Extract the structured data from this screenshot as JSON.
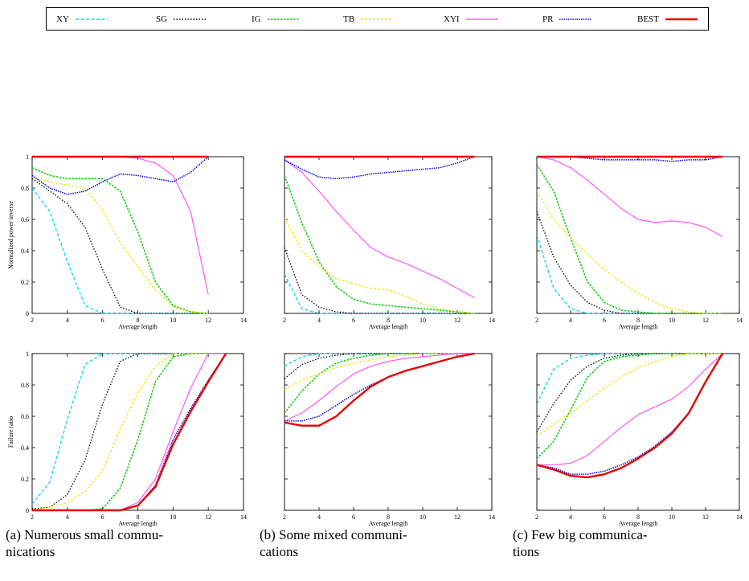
{
  "legend": [
    {
      "label": "XY",
      "color": "#00d8e8",
      "dash": "4,2.5",
      "width": 1.3
    },
    {
      "label": "SG",
      "color": "#000000",
      "dash": "1.5,2",
      "width": 1.3
    },
    {
      "label": "IG",
      "color": "#00cc00",
      "dash": "2.5,1.5",
      "width": 1.5
    },
    {
      "label": "TB",
      "color": "#f2e600",
      "dash": "3,2",
      "width": 1.2
    },
    {
      "label": "XYI",
      "color": "#ff55ff",
      "dash": "",
      "width": 1.2
    },
    {
      "label": "PR",
      "color": "#0000cc",
      "dash": "1.5,1.2",
      "width": 1.5
    },
    {
      "label": "BEST",
      "color": "#e60000",
      "dash": "",
      "width": 2.4
    }
  ],
  "captions": [
    {
      "line1": "(a) Numerous small commu-",
      "line2": "nications"
    },
    {
      "line1": "(b) Some mixed communi-",
      "line2": "cations"
    },
    {
      "line1": "(c) Few big communica-",
      "line2": "tions"
    }
  ],
  "chart_data": [
    {
      "id": "a-top",
      "type": "line",
      "xlabel": "Average length",
      "ylabel": "Normalized power inverse",
      "xlim": [
        2,
        14
      ],
      "ylim": [
        0,
        1
      ],
      "xticks": [
        "2",
        "4",
        "6",
        "8",
        "10",
        "12",
        "14"
      ],
      "yticks": [
        "0",
        "0.2",
        "0.4",
        "0.6",
        "0.8",
        "1"
      ],
      "x": [
        2,
        3,
        4,
        5,
        6,
        7,
        8,
        9,
        10,
        11,
        12
      ],
      "series": [
        {
          "name": "XY",
          "values": [
            0.8,
            0.65,
            0.33,
            0.05,
            0,
            0,
            0,
            0,
            0,
            0,
            0
          ]
        },
        {
          "name": "SG",
          "values": [
            0.86,
            0.78,
            0.7,
            0.55,
            0.28,
            0.04,
            0,
            0,
            0,
            0,
            0
          ]
        },
        {
          "name": "IG",
          "values": [
            0.93,
            0.88,
            0.86,
            0.86,
            0.86,
            0.78,
            0.52,
            0.2,
            0.05,
            0.01,
            0
          ]
        },
        {
          "name": "TB",
          "values": [
            0.87,
            0.84,
            0.82,
            0.8,
            0.66,
            0.45,
            0.3,
            0.15,
            0.04,
            0.01,
            0
          ]
        },
        {
          "name": "XYI",
          "values": [
            1,
            1,
            1,
            1,
            1,
            1,
            0.99,
            0.96,
            0.88,
            0.65,
            0.12
          ]
        },
        {
          "name": "PR",
          "values": [
            0.88,
            0.8,
            0.76,
            0.78,
            0.84,
            0.89,
            0.88,
            0.86,
            0.84,
            0.9,
            1
          ]
        },
        {
          "name": "BEST",
          "values": [
            1,
            1,
            1,
            1,
            1,
            1,
            1,
            1,
            1,
            1,
            1
          ]
        }
      ]
    },
    {
      "id": "b-top",
      "type": "line",
      "xlabel": "Average length",
      "ylabel": "",
      "xlim": [
        2,
        14
      ],
      "ylim": [
        0,
        1
      ],
      "xticks": [
        "2",
        "4",
        "6",
        "8",
        "10",
        "12",
        "14"
      ],
      "yticks": [],
      "x": [
        2,
        3,
        4,
        5,
        6,
        7,
        8,
        9,
        10,
        11,
        12,
        13
      ],
      "series": [
        {
          "name": "XY",
          "values": [
            0.25,
            0.03,
            0,
            0,
            0,
            0,
            0,
            0,
            0,
            0,
            0,
            0
          ]
        },
        {
          "name": "SG",
          "values": [
            0.42,
            0.12,
            0.04,
            0.01,
            0,
            0,
            0,
            0,
            0,
            0,
            0,
            0
          ]
        },
        {
          "name": "IG",
          "values": [
            0.88,
            0.58,
            0.33,
            0.17,
            0.09,
            0.06,
            0.05,
            0.04,
            0.03,
            0.02,
            0.01,
            0
          ]
        },
        {
          "name": "TB",
          "values": [
            0.61,
            0.4,
            0.3,
            0.22,
            0.19,
            0.16,
            0.15,
            0.11,
            0.06,
            0.03,
            0.01,
            0
          ]
        },
        {
          "name": "XYI",
          "values": [
            0.98,
            0.9,
            0.78,
            0.65,
            0.53,
            0.42,
            0.36,
            0.32,
            0.27,
            0.22,
            0.16,
            0.1
          ]
        },
        {
          "name": "PR",
          "values": [
            0.98,
            0.92,
            0.87,
            0.86,
            0.87,
            0.89,
            0.9,
            0.91,
            0.92,
            0.93,
            0.96,
            1
          ]
        },
        {
          "name": "BEST",
          "values": [
            1,
            1,
            1,
            1,
            1,
            1,
            1,
            1,
            1,
            1,
            1,
            1
          ]
        }
      ]
    },
    {
      "id": "c-top",
      "type": "line",
      "xlabel": "Average length",
      "ylabel": "",
      "xlim": [
        2,
        14
      ],
      "ylim": [
        0,
        1
      ],
      "xticks": [
        "2",
        "4",
        "6",
        "8",
        "10",
        "12",
        "14"
      ],
      "yticks": [],
      "x": [
        2,
        3,
        4,
        5,
        6,
        7,
        8,
        9,
        10,
        11,
        12,
        13
      ],
      "series": [
        {
          "name": "XY",
          "values": [
            0.5,
            0.16,
            0.03,
            0,
            0,
            0,
            0,
            0,
            0,
            0,
            0,
            0
          ]
        },
        {
          "name": "SG",
          "values": [
            0.65,
            0.36,
            0.18,
            0.07,
            0.02,
            0,
            0,
            0,
            0,
            0,
            0,
            0
          ]
        },
        {
          "name": "IG",
          "values": [
            0.95,
            0.78,
            0.48,
            0.2,
            0.07,
            0.02,
            0.01,
            0,
            0,
            0,
            0,
            0
          ]
        },
        {
          "name": "TB",
          "values": [
            0.78,
            0.6,
            0.48,
            0.38,
            0.28,
            0.2,
            0.13,
            0.07,
            0.03,
            0.01,
            0,
            0
          ]
        },
        {
          "name": "XYI",
          "values": [
            1,
            0.98,
            0.93,
            0.85,
            0.76,
            0.67,
            0.6,
            0.58,
            0.59,
            0.58,
            0.55,
            0.49
          ]
        },
        {
          "name": "PR",
          "values": [
            1,
            1,
            1,
            0.99,
            0.98,
            0.98,
            0.98,
            0.98,
            0.97,
            0.98,
            0.98,
            1
          ]
        },
        {
          "name": "BEST",
          "values": [
            1,
            1,
            1,
            1,
            1,
            1,
            1,
            1,
            1,
            1,
            1,
            1
          ]
        }
      ]
    },
    {
      "id": "a-bottom",
      "type": "line",
      "xlabel": "Average length",
      "ylabel": "Failure ratio",
      "xlim": [
        2,
        14
      ],
      "ylim": [
        0,
        1
      ],
      "xticks": [
        "2",
        "4",
        "6",
        "8",
        "10",
        "12",
        "14"
      ],
      "yticks": [
        "0",
        "0.2",
        "0.4",
        "0.6",
        "0.8",
        "1"
      ],
      "x": [
        2,
        3,
        4,
        5,
        6,
        7,
        8,
        9,
        10,
        11,
        12,
        13
      ],
      "series": [
        {
          "name": "XY",
          "values": [
            0.04,
            0.18,
            0.58,
            0.93,
            1,
            1,
            1,
            1,
            1,
            1,
            1,
            1
          ]
        },
        {
          "name": "SG",
          "values": [
            0.01,
            0.02,
            0.1,
            0.32,
            0.68,
            0.95,
            1,
            1,
            1,
            1,
            1,
            1
          ]
        },
        {
          "name": "IG",
          "values": [
            0,
            0,
            0,
            0,
            0.01,
            0.14,
            0.45,
            0.82,
            0.98,
            1,
            1,
            1
          ]
        },
        {
          "name": "TB",
          "values": [
            0,
            0.02,
            0.05,
            0.12,
            0.25,
            0.52,
            0.75,
            0.92,
            1,
            1,
            1,
            1
          ]
        },
        {
          "name": "XYI",
          "values": [
            0,
            0,
            0,
            0,
            0,
            0,
            0.05,
            0.2,
            0.5,
            0.78,
            1,
            1
          ]
        },
        {
          "name": "PR",
          "values": [
            0,
            0,
            0,
            0,
            0,
            0,
            0.03,
            0.16,
            0.45,
            0.65,
            0.83,
            1
          ]
        },
        {
          "name": "BEST",
          "values": [
            0,
            0,
            0,
            0,
            0,
            0,
            0.03,
            0.15,
            0.42,
            0.63,
            0.82,
            1
          ]
        }
      ]
    },
    {
      "id": "b-bottom",
      "type": "line",
      "xlabel": "Average length",
      "ylabel": "",
      "xlim": [
        2,
        14
      ],
      "ylim": [
        0,
        1
      ],
      "xticks": [
        "2",
        "4",
        "6",
        "8",
        "10",
        "12",
        "14"
      ],
      "yticks": [],
      "x": [
        2,
        3,
        4,
        5,
        6,
        7,
        8,
        9,
        10,
        11,
        12,
        13
      ],
      "series": [
        {
          "name": "XY",
          "values": [
            0.92,
            0.98,
            1,
            1,
            1,
            1,
            1,
            1,
            1,
            1,
            1,
            1
          ]
        },
        {
          "name": "SG",
          "values": [
            0.84,
            0.93,
            0.97,
            0.99,
            1,
            1,
            1,
            1,
            1,
            1,
            1,
            1
          ]
        },
        {
          "name": "IG",
          "values": [
            0.62,
            0.76,
            0.87,
            0.94,
            0.97,
            0.99,
            1,
            1,
            1,
            1,
            1,
            1
          ]
        },
        {
          "name": "TB",
          "values": [
            0.77,
            0.83,
            0.87,
            0.91,
            0.94,
            0.96,
            0.98,
            0.99,
            1,
            1,
            1,
            1
          ]
        },
        {
          "name": "XYI",
          "values": [
            0.57,
            0.62,
            0.7,
            0.79,
            0.87,
            0.92,
            0.95,
            0.97,
            0.98,
            0.99,
            1,
            1
          ]
        },
        {
          "name": "PR",
          "values": [
            0.57,
            0.57,
            0.6,
            0.67,
            0.74,
            0.8,
            0.85,
            0.89,
            0.92,
            0.95,
            0.98,
            1
          ]
        },
        {
          "name": "BEST",
          "values": [
            0.56,
            0.54,
            0.54,
            0.6,
            0.7,
            0.79,
            0.85,
            0.89,
            0.92,
            0.95,
            0.98,
            1
          ]
        }
      ]
    },
    {
      "id": "c-bottom",
      "type": "line",
      "xlabel": "Average length",
      "ylabel": "",
      "xlim": [
        2,
        14
      ],
      "ylim": [
        0,
        1
      ],
      "xticks": [
        "2",
        "4",
        "6",
        "8",
        "10",
        "12",
        "14"
      ],
      "yticks": [],
      "x": [
        2,
        3,
        4,
        5,
        6,
        7,
        8,
        9,
        10,
        11,
        12,
        13
      ],
      "series": [
        {
          "name": "XY",
          "values": [
            0.68,
            0.9,
            0.97,
            0.99,
            1,
            1,
            1,
            1,
            1,
            1,
            1,
            1
          ]
        },
        {
          "name": "SG",
          "values": [
            0.5,
            0.68,
            0.83,
            0.92,
            0.97,
            0.99,
            1,
            1,
            1,
            1,
            1,
            1
          ]
        },
        {
          "name": "IG",
          "values": [
            0.33,
            0.44,
            0.64,
            0.85,
            0.95,
            0.98,
            0.99,
            1,
            1,
            1,
            1,
            1
          ]
        },
        {
          "name": "TB",
          "values": [
            0.47,
            0.55,
            0.62,
            0.7,
            0.78,
            0.85,
            0.91,
            0.95,
            0.98,
            1,
            1,
            1
          ]
        },
        {
          "name": "XYI",
          "values": [
            0.29,
            0.29,
            0.3,
            0.35,
            0.44,
            0.53,
            0.61,
            0.66,
            0.71,
            0.79,
            0.9,
            1
          ]
        },
        {
          "name": "PR",
          "values": [
            0.29,
            0.27,
            0.23,
            0.23,
            0.25,
            0.29,
            0.34,
            0.41,
            0.5,
            0.62,
            0.82,
            1
          ]
        },
        {
          "name": "BEST",
          "values": [
            0.29,
            0.26,
            0.22,
            0.21,
            0.23,
            0.27,
            0.33,
            0.4,
            0.49,
            0.62,
            0.82,
            1
          ]
        }
      ]
    }
  ]
}
